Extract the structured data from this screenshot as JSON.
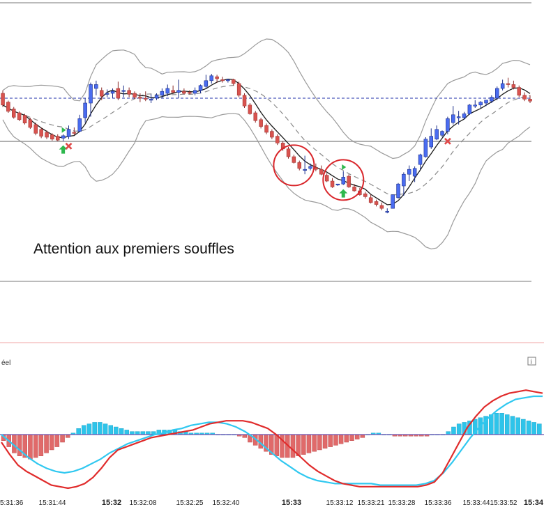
{
  "chart_data": [
    {
      "type": "candlestick",
      "title": "",
      "annotation": "Attention aux premiers souffles",
      "colors": {
        "up": "#4a6cf0",
        "down": "#d9534f",
        "bands": "#9a9a9a",
        "ma": "#1a1a1a",
        "midline": "#8a8a8a",
        "level": "#1f2fa8",
        "buy": "#2db84d",
        "sell": "#e04848",
        "circle": "#d9262b"
      },
      "series": [
        {
          "name": "price",
          "candles": [
            [
              10,
              10.6,
              7.2,
              7.6
            ],
            [
              8.2,
              8.5,
              6.0,
              6.3
            ],
            [
              6.8,
              7.2,
              4.8,
              5.1
            ],
            [
              6.0,
              6.3,
              4.3,
              4.6
            ],
            [
              5.5,
              5.8,
              3.6,
              3.9
            ],
            [
              4.6,
              5.0,
              2.7,
              3.0
            ],
            [
              3.6,
              4.0,
              1.4,
              1.8
            ],
            [
              2.6,
              3.0,
              0.8,
              1.2
            ],
            [
              2.0,
              2.4,
              0.6,
              1.0
            ],
            [
              1.5,
              1.8,
              0.3,
              0.6
            ],
            [
              1.2,
              1.6,
              0.2,
              0.4
            ],
            [
              0.8,
              1.6,
              0.2,
              1.3
            ],
            [
              1.1,
              3.4,
              0.6,
              2.6
            ],
            [
              2.0,
              3.0,
              1.4,
              1.8
            ],
            [
              2.2,
              5.6,
              2.0,
              4.8
            ],
            [
              5.0,
              9.0,
              4.0,
              8.0
            ],
            [
              8.0,
              12.2,
              5.2,
              11.8
            ],
            [
              11.0,
              12.6,
              9.6,
              11.8
            ],
            [
              10.6,
              11.2,
              8.6,
              9.4
            ],
            [
              9.8,
              10.8,
              9.2,
              10.0
            ],
            [
              10.0,
              11.0,
              9.0,
              10.4
            ],
            [
              11.0,
              12.4,
              8.6,
              9.0
            ],
            [
              10.4,
              11.6,
              9.2,
              10.6
            ],
            [
              10.6,
              11.2,
              9.2,
              9.8
            ],
            [
              10.0,
              10.4,
              8.8,
              9.2
            ],
            [
              9.2,
              10.0,
              8.2,
              9.0
            ],
            [
              9.0,
              10.4,
              8.4,
              8.8
            ],
            [
              8.8,
              9.8,
              8.0,
              8.8
            ],
            [
              9.0,
              10.0,
              8.6,
              9.6
            ],
            [
              9.6,
              11.0,
              9.0,
              10.4
            ],
            [
              10.0,
              11.8,
              9.4,
              11.0
            ],
            [
              10.6,
              11.6,
              10.0,
              10.2
            ],
            [
              10.2,
              12.8,
              9.0,
              10.6
            ],
            [
              10.4,
              11.0,
              9.8,
              10.0
            ],
            [
              10.2,
              10.6,
              9.8,
              10.0
            ],
            [
              10.0,
              11.2,
              9.6,
              10.6
            ],
            [
              10.6,
              11.8,
              10.0,
              11.6
            ],
            [
              11.4,
              13.8,
              11.0,
              12.6
            ],
            [
              12.6,
              14.0,
              12.0,
              13.6
            ],
            [
              13.4,
              13.8,
              12.2,
              13.0
            ],
            [
              12.8,
              13.4,
              12.2,
              12.6
            ],
            [
              12.6,
              13.0,
              12.2,
              12.8
            ],
            [
              12.8,
              13.0,
              11.6,
              12.0
            ],
            [
              12.0,
              12.4,
              9.2,
              9.6
            ],
            [
              9.6,
              10.0,
              7.0,
              7.4
            ],
            [
              7.6,
              8.0,
              5.6,
              5.8
            ],
            [
              6.0,
              6.4,
              4.0,
              4.4
            ],
            [
              4.6,
              5.0,
              2.8,
              3.2
            ],
            [
              3.4,
              3.8,
              1.6,
              2.0
            ],
            [
              2.2,
              2.6,
              0.6,
              1.0
            ],
            [
              1.2,
              1.6,
              -0.6,
              -0.2
            ],
            [
              -0.2,
              0.2,
              -1.8,
              -1.4
            ],
            [
              -1.4,
              -1.0,
              -3.4,
              -3.0
            ],
            [
              -3.0,
              -2.6,
              -4.4,
              -4.2
            ],
            [
              -4.2,
              -3.8,
              -5.8,
              -5.4
            ],
            [
              -5.6,
              -2.8,
              -6.6,
              -5.6
            ],
            [
              -5.4,
              -4.4,
              -5.8,
              -5.0
            ],
            [
              -5.2,
              -4.4,
              -6.0,
              -5.6
            ],
            [
              -5.6,
              -4.8,
              -6.8,
              -6.6
            ],
            [
              -6.8,
              -6.4,
              -8.2,
              -8.0
            ],
            [
              -8.0,
              -7.4,
              -9.4,
              -9.2
            ],
            [
              -8.8,
              -8.6,
              -9.0,
              -8.6
            ],
            [
              -8.6,
              -6.0,
              -8.8,
              -7.2
            ],
            [
              -7.0,
              -6.6,
              -9.4,
              -9.2
            ],
            [
              -9.2,
              -8.6,
              -10.2,
              -10.0
            ],
            [
              -10.0,
              -9.4,
              -11.0,
              -10.8
            ],
            [
              -10.6,
              -10.2,
              -11.6,
              -11.2
            ],
            [
              -11.4,
              -10.8,
              -12.6,
              -12.4
            ],
            [
              -12.2,
              -11.8,
              -13.2,
              -12.8
            ],
            [
              -13.0,
              -12.4,
              -14.0,
              -13.6
            ],
            [
              -14.2,
              -13.6,
              -14.6,
              -14.2
            ],
            [
              -13.6,
              -10.8,
              -13.6,
              -10.8
            ],
            [
              -11.4,
              -8.4,
              -11.6,
              -8.6
            ],
            [
              -9.0,
              -6.2,
              -11.0,
              -6.6
            ],
            [
              -6.6,
              -4.8,
              -8.0,
              -5.6
            ],
            [
              -7.0,
              -5.0,
              -8.2,
              -5.4
            ],
            [
              -4.6,
              -2.4,
              -5.6,
              -2.6
            ],
            [
              -3.0,
              1.0,
              -3.2,
              0.6
            ],
            [
              -1.0,
              2.8,
              -1.4,
              1.2
            ],
            [
              0.6,
              3.4,
              0.4,
              2.6
            ],
            [
              1.4,
              2.4,
              1.0,
              2.2
            ],
            [
              2.2,
              5.2,
              1.6,
              4.8
            ],
            [
              4.0,
              7.4,
              3.6,
              5.6
            ],
            [
              5.0,
              6.4,
              3.6,
              5.2
            ],
            [
              5.0,
              6.2,
              4.6,
              5.8
            ],
            [
              5.8,
              7.8,
              5.6,
              7.6
            ],
            [
              7.4,
              8.6,
              7.0,
              7.6
            ],
            [
              7.6,
              8.4,
              7.0,
              8.2
            ],
            [
              8.0,
              8.6,
              7.4,
              8.6
            ],
            [
              8.4,
              9.6,
              8.0,
              9.2
            ],
            [
              9.0,
              11.4,
              8.6,
              11.0
            ],
            [
              11.0,
              12.8,
              10.6,
              12.0
            ],
            [
              12.0,
              13.2,
              11.2,
              11.8
            ],
            [
              11.8,
              12.6,
              10.8,
              11.2
            ],
            [
              11.2,
              11.6,
              9.2,
              9.6
            ],
            [
              9.6,
              10.2,
              8.4,
              8.8
            ],
            [
              8.8,
              9.6,
              8.0,
              8.4
            ]
          ]
        }
      ],
      "levels": [
        9.0
      ],
      "signals": {
        "buy": [
          11,
          62
        ],
        "sell": [
          12,
          81
        ],
        "triangles": [
          11,
          62
        ]
      },
      "circles": [
        53,
        62
      ],
      "ylim": [
        -28,
        28
      ]
    },
    {
      "type": "bar",
      "panel_label": "éel",
      "info_button": "i",
      "x_ticks": [
        "5:31:36",
        "15:31:44",
        "15:32",
        "15:32:08",
        "15:32:25",
        "15:32:40",
        "15:33",
        "15:33:12",
        "15:33:21",
        "15:33:28",
        "15:33:36",
        "15:33:44",
        "15:33:52",
        "15:34"
      ],
      "series": [
        {
          "name": "histogram",
          "values": [
            -4,
            -8,
            -12,
            -14,
            -15,
            -16,
            -15,
            -14,
            -12,
            -10,
            -8,
            -5,
            -2,
            1,
            4,
            6,
            7,
            8,
            8,
            7,
            6,
            5,
            4,
            3,
            2,
            2,
            2,
            2,
            2,
            3,
            3,
            3,
            3,
            2,
            2,
            1,
            1,
            1,
            1,
            1,
            0,
            0,
            0,
            0,
            -1,
            -2,
            -5,
            -7,
            -9,
            -11,
            -13,
            -14,
            -15,
            -15,
            -15,
            -14,
            -13,
            -12,
            -11,
            -10,
            -9,
            -8,
            -7,
            -6,
            -5,
            -4,
            -3,
            -2,
            0,
            1,
            1,
            0,
            0,
            -1,
            -1,
            -1,
            -1,
            -1,
            -1,
            -1,
            0,
            0,
            0,
            2,
            5,
            7,
            8,
            9,
            10,
            11,
            12,
            13,
            14,
            14,
            13,
            12,
            11,
            10,
            9,
            8,
            7
          ]
        },
        {
          "name": "macd",
          "values": [
            -5,
            -13,
            -20,
            -24,
            -27,
            -30,
            -33,
            -34,
            -35,
            -34,
            -32,
            -28,
            -22,
            -15,
            -10,
            -8,
            -6,
            -4,
            -2,
            -1,
            0,
            1,
            2,
            3,
            5,
            7,
            8,
            9,
            9,
            9,
            8,
            6,
            4,
            0,
            -5,
            -10,
            -15,
            -20,
            -24,
            -27,
            -30,
            -32,
            -33,
            -34,
            -34,
            -34,
            -34,
            -34,
            -34,
            -34,
            -34,
            -33,
            -31,
            -25,
            -15,
            -5,
            5,
            12,
            18,
            22,
            25,
            27,
            28,
            29,
            28,
            27
          ]
        },
        {
          "name": "signal",
          "values": [
            0,
            -5,
            -10,
            -15,
            -19,
            -22,
            -24,
            -25,
            -24,
            -22,
            -19,
            -16,
            -12,
            -9,
            -6,
            -4,
            -2,
            0,
            1,
            3,
            4,
            6,
            7,
            8,
            8,
            7,
            5,
            2,
            -2,
            -7,
            -12,
            -17,
            -21,
            -25,
            -28,
            -30,
            -31,
            -32,
            -32,
            -32,
            -32,
            -32,
            -33,
            -33,
            -33,
            -33,
            -33,
            -32,
            -30,
            -25,
            -18,
            -10,
            -2,
            5,
            11,
            16,
            20,
            23,
            24,
            25,
            25
          ]
        }
      ],
      "ylim": [
        -40,
        40
      ]
    }
  ]
}
